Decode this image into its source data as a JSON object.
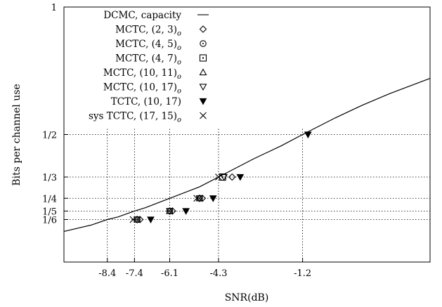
{
  "chart_data": {
    "type": "scatter",
    "xlabel": "SNR(dB)",
    "ylabel": "Bits per channel use",
    "xlim": [
      -10.0,
      3.5
    ],
    "ylim": [
      0.0,
      1.0
    ],
    "x_ticks": [
      {
        "value": -8.4,
        "label": "-8.4"
      },
      {
        "value": -7.4,
        "label": "-7.4"
      },
      {
        "value": -6.1,
        "label": "-6.1"
      },
      {
        "value": -4.3,
        "label": "-4.3"
      },
      {
        "value": -1.2,
        "label": "-1.2"
      }
    ],
    "y_ticks": [
      {
        "value": 1.0,
        "label": "1"
      },
      {
        "value": 0.5,
        "label": "1/2"
      },
      {
        "value": 0.3333,
        "label": "1/3"
      },
      {
        "value": 0.25,
        "label": "1/4"
      },
      {
        "value": 0.2,
        "label": "1/5"
      },
      {
        "value": 0.1667,
        "label": "1/6"
      }
    ],
    "grid": "dotted at tick values",
    "legend_position": "top-left",
    "series": [
      {
        "name": "DCMC, capacity",
        "kind": "line",
        "marker": "line",
        "x": [
          -10.0,
          -9.0,
          -8.4,
          -8.0,
          -7.4,
          -7.0,
          -6.1,
          -5.0,
          -4.3,
          -3.0,
          -2.0,
          -1.2,
          0.0,
          1.0,
          2.0,
          3.5
        ],
        "y": [
          0.12,
          0.145,
          0.1667,
          0.177,
          0.2,
          0.213,
          0.25,
          0.295,
          0.3333,
          0.405,
          0.455,
          0.5,
          0.565,
          0.615,
          0.66,
          0.72
        ]
      },
      {
        "name": "MCTC, (2, 3)",
        "subscript": "o",
        "kind": "points",
        "marker": "diamond",
        "x": [
          -7.2,
          -6.0,
          -4.9,
          -3.8
        ],
        "y": [
          0.1667,
          0.2,
          0.25,
          0.3333
        ]
      },
      {
        "name": "MCTC, (4, 5)",
        "subscript": "o",
        "kind": "points",
        "marker": "circle",
        "x": [
          -7.3,
          -6.1,
          -5.0
        ],
        "y": [
          0.1667,
          0.2,
          0.25
        ]
      },
      {
        "name": "MCTC, (4, 7)",
        "subscript": "o",
        "kind": "points",
        "marker": "square",
        "x": [
          -4.15
        ],
        "y": [
          0.3333
        ]
      },
      {
        "name": "MCTC, (10, 11)",
        "subscript": "o",
        "kind": "points",
        "marker": "triangle-up",
        "x": [
          -7.3,
          -6.1,
          -5.0
        ],
        "y": [
          0.1667,
          0.2,
          0.25
        ]
      },
      {
        "name": "MCTC, (10, 17)",
        "subscript": "o",
        "kind": "points",
        "marker": "triangle-down",
        "x": [
          -7.3,
          -6.1,
          -5.0,
          -4.1
        ],
        "y": [
          0.1667,
          0.2,
          0.25,
          0.3333
        ]
      },
      {
        "name": "TCTC, (10, 17)",
        "kind": "points",
        "marker": "triangle-down-filled",
        "x": [
          -6.8,
          -5.5,
          -4.5,
          -3.5,
          -1.0
        ],
        "y": [
          0.1667,
          0.2,
          0.25,
          0.3333,
          0.5
        ]
      },
      {
        "name": "sys TCTC, (17, 15)",
        "subscript": "o",
        "kind": "points",
        "marker": "cross",
        "x": [
          -7.45,
          -5.1,
          -4.3
        ],
        "y": [
          0.1667,
          0.25,
          0.3333
        ]
      }
    ]
  }
}
